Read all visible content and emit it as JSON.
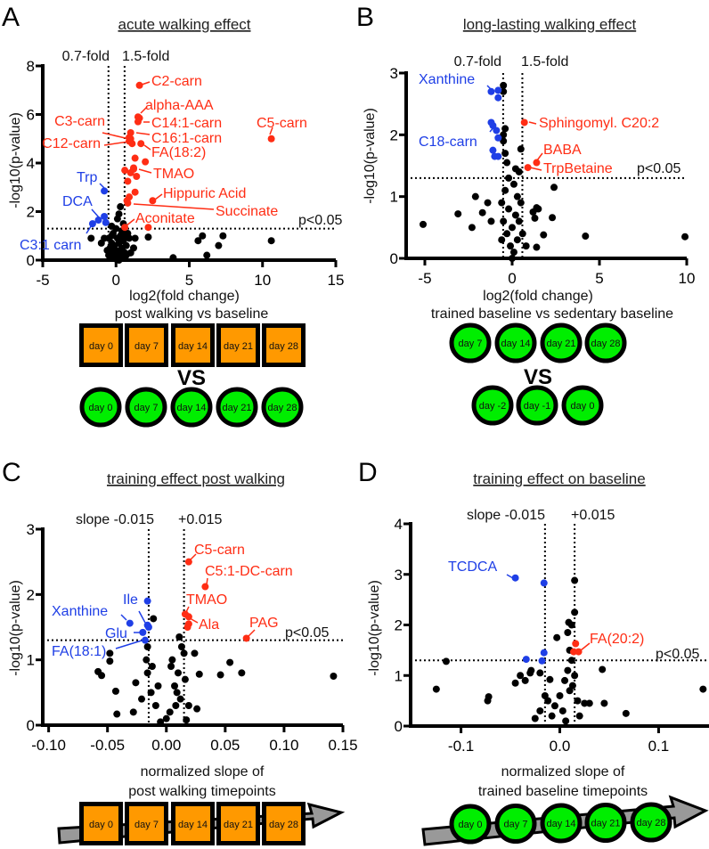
{
  "colors": {
    "up": "#ff2d14",
    "down": "#1f3fe6",
    "ns": "#000000",
    "orange": "#ff9900",
    "green": "#00ee00",
    "arrow": "#999999"
  },
  "panels": {
    "A": {
      "letter": "A",
      "title": "acute walking effect",
      "fold_low": "0.7-fold",
      "fold_high": "1.5-fold",
      "pval": "p<0.05",
      "xlabel": "log2(fold change)",
      "subtitle": "post walking vs baseline",
      "ylabel": "-log10(p-value)",
      "vs": "VS",
      "top_days": [
        "day 0",
        "day 7",
        "day 14",
        "day 21",
        "day 28"
      ],
      "bottom_days": [
        "day 0",
        "day 7",
        "day 14",
        "day 21",
        "day 28"
      ]
    },
    "B": {
      "letter": "B",
      "title": "long-lasting walking effect",
      "fold_low": "0.7-fold",
      "fold_high": "1.5-fold",
      "pval": "p<0.05",
      "xlabel": "log2(fold change)",
      "subtitle": "trained baseline vs sedentary baseline",
      "ylabel": "-log10(p-value)",
      "vs": "VS",
      "top_days": [
        "day 7",
        "day 14",
        "day 21",
        "day 28"
      ],
      "bottom_days": [
        "day -2",
        "day -1",
        "day 0"
      ]
    },
    "C": {
      "letter": "C",
      "title": "training effect post walking",
      "slope_low": "slope -0.015",
      "slope_high": "+0.015",
      "pval": "p<0.05",
      "xlabel1": "normalized slope of",
      "xlabel2": "post walking timepoints",
      "ylabel": "-log10(p-value)",
      "days": [
        "day 0",
        "day 7",
        "day 14",
        "day 21",
        "day 28"
      ]
    },
    "D": {
      "letter": "D",
      "title": "training effect on baseline",
      "slope_low": "slope -0.015",
      "slope_high": "+0.015",
      "pval": "p<0.05",
      "xlabel1": "normalized slope of",
      "xlabel2": "trained baseline timepoints",
      "ylabel": "-log10(p-value)",
      "days": [
        "day 0",
        "day 7",
        "day 14",
        "day 21",
        "day 28"
      ]
    }
  },
  "chart_data": [
    {
      "id": "A",
      "type": "scatter",
      "title": "acute walking effect",
      "xlabel": "log2(fold change)",
      "ylabel": "-log10(p-value)",
      "xlim": [
        -5,
        15
      ],
      "ylim": [
        0,
        8
      ],
      "xticks": [
        -5,
        0,
        5,
        10,
        15
      ],
      "yticks": [
        0,
        2,
        4,
        6,
        8
      ],
      "thresholds": {
        "x": [
          -0.515,
          0.585
        ],
        "y": 1.3
      },
      "labeled": [
        {
          "label": "C2-carn",
          "x": 1.6,
          "y": 7.2,
          "group": "up"
        },
        {
          "label": "alpha-AAA",
          "x": 1.6,
          "y": 5.85,
          "group": "up"
        },
        {
          "label": "C14:1-carn",
          "x": 1.5,
          "y": 5.7,
          "group": "up"
        },
        {
          "label": "C16:1-carn",
          "x": 1.0,
          "y": 5.25,
          "group": "up"
        },
        {
          "label": "C3-carn",
          "x": 1.0,
          "y": 5.0,
          "group": "up"
        },
        {
          "label": "C12-carn",
          "x": 0.9,
          "y": 4.9,
          "group": "up"
        },
        {
          "label": "FA(18:2)",
          "x": 1.7,
          "y": 4.8,
          "group": "up"
        },
        {
          "label": "TMAO",
          "x": 1.2,
          "y": 3.8,
          "group": "up"
        },
        {
          "label": "Hippuric Acid",
          "x": 2.5,
          "y": 2.45,
          "group": "up"
        },
        {
          "label": "Succinate",
          "x": 0.8,
          "y": 2.35,
          "group": "up"
        },
        {
          "label": "Aconitate",
          "x": 0.6,
          "y": 1.35,
          "group": "up"
        },
        {
          "label": "C5-carn",
          "x": 10.6,
          "y": 5.0,
          "group": "up"
        },
        {
          "label": "Trp",
          "x": -0.8,
          "y": 2.85,
          "group": "down"
        },
        {
          "label": "DCA",
          "x": -1.2,
          "y": 1.65,
          "group": "down"
        },
        {
          "label": "C3:1 carn",
          "x": -1.6,
          "y": 1.5,
          "group": "down"
        }
      ],
      "up": [
        [
          1.3,
          4.2
        ],
        [
          2.0,
          4.05
        ],
        [
          0.6,
          3.7
        ],
        [
          1.0,
          3.6
        ],
        [
          1.4,
          3.45
        ],
        [
          1.2,
          3.75
        ],
        [
          0.8,
          3.25
        ],
        [
          0.9,
          2.6
        ],
        [
          1.3,
          2.8
        ],
        [
          0.75,
          2.45
        ],
        [
          2.2,
          1.35
        ],
        [
          1.1,
          4.8
        ],
        [
          0.9,
          5.05
        ],
        [
          1.5,
          5.9
        ]
      ],
      "down": [
        [
          -0.8,
          1.8
        ],
        [
          -0.7,
          1.55
        ]
      ],
      "ns": [
        [
          0.3,
          2.2
        ],
        [
          0.2,
          1.9
        ],
        [
          0.1,
          1.7
        ],
        [
          -0.3,
          1.4
        ],
        [
          0.0,
          1.3
        ],
        [
          0.4,
          1.2
        ],
        [
          -0.2,
          1.1
        ],
        [
          0.3,
          1.0
        ],
        [
          0.6,
          1.0
        ],
        [
          -0.5,
          0.9
        ],
        [
          0.1,
          0.9
        ],
        [
          0.5,
          0.8
        ],
        [
          -0.3,
          0.7
        ],
        [
          0.2,
          0.7
        ],
        [
          0.7,
          0.6
        ],
        [
          -0.1,
          0.6
        ],
        [
          -0.4,
          0.5
        ],
        [
          0.4,
          0.5
        ],
        [
          0.0,
          0.4
        ],
        [
          -0.2,
          0.3
        ],
        [
          0.3,
          0.3
        ],
        [
          0.6,
          0.3
        ],
        [
          -0.5,
          0.2
        ],
        [
          0.1,
          0.2
        ],
        [
          0.4,
          0.1
        ],
        [
          -0.2,
          0.1
        ],
        [
          0.0,
          0.05
        ],
        [
          0.2,
          0.0
        ],
        [
          -1.0,
          0.7
        ],
        [
          -1.7,
          0.9
        ],
        [
          -0.8,
          0.9
        ],
        [
          0.9,
          0.9
        ],
        [
          1.3,
          0.9
        ],
        [
          2.2,
          0.95
        ],
        [
          1.2,
          0.5
        ],
        [
          1.0,
          0.3
        ],
        [
          0.7,
          0.2
        ],
        [
          3.9,
          0.1
        ],
        [
          5.6,
          0.8
        ],
        [
          5.9,
          1.0
        ],
        [
          6.2,
          0.2
        ],
        [
          7.0,
          0.6
        ],
        [
          7.3,
          1.0
        ],
        [
          10.6,
          0.8
        ],
        [
          -0.6,
          0.4
        ],
        [
          0.8,
          1.1
        ],
        [
          -0.3,
          1.0
        ],
        [
          0.5,
          1.5
        ]
      ]
    },
    {
      "id": "B",
      "type": "scatter",
      "title": "long-lasting walking effect",
      "xlabel": "log2(fold change)",
      "ylabel": "-log10(p-value)",
      "xlim": [
        -6.07,
        10
      ],
      "ylim": [
        0,
        3
      ],
      "xticks": [
        -5,
        0,
        5,
        10
      ],
      "yticks": [
        0,
        1,
        2,
        3
      ],
      "thresholds": {
        "x": [
          -0.515,
          0.585
        ],
        "y": 1.3
      },
      "labeled": [
        {
          "label": "Xanthine",
          "x": -1.2,
          "y": 2.7,
          "group": "down"
        },
        {
          "label": "C18-carn",
          "x": -1.2,
          "y": 2.2,
          "group": "down"
        },
        {
          "label": "Sphingomyl. C20:2",
          "x": 0.7,
          "y": 2.2,
          "group": "up"
        },
        {
          "label": "BABA",
          "x": 1.4,
          "y": 1.55,
          "group": "up"
        },
        {
          "label": "TrpBetaine",
          "x": 0.9,
          "y": 1.47,
          "group": "up"
        }
      ],
      "up": [],
      "down": [
        [
          -0.8,
          2.72
        ],
        [
          -0.8,
          2.6
        ],
        [
          -1.1,
          2.15
        ],
        [
          -0.9,
          2.07
        ],
        [
          -0.8,
          1.95
        ],
        [
          -1.1,
          1.75
        ],
        [
          -1.0,
          1.65
        ],
        [
          -0.8,
          1.65
        ]
      ],
      "ns": [
        [
          -0.5,
          2.8
        ],
        [
          -0.5,
          2.7
        ],
        [
          -0.4,
          2.1
        ],
        [
          -0.5,
          2.0
        ],
        [
          -0.5,
          1.9
        ],
        [
          -0.4,
          1.7
        ],
        [
          0.5,
          1.77
        ],
        [
          -0.3,
          1.55
        ],
        [
          0.2,
          1.45
        ],
        [
          0.4,
          1.4
        ],
        [
          -0.2,
          1.3
        ],
        [
          0.1,
          1.2
        ],
        [
          -0.4,
          1.1
        ],
        [
          0.3,
          1.0
        ],
        [
          -0.6,
          0.9
        ],
        [
          0.5,
          0.9
        ],
        [
          -0.2,
          0.8
        ],
        [
          0.2,
          0.7
        ],
        [
          -0.5,
          0.6
        ],
        [
          0.4,
          0.6
        ],
        [
          0.0,
          0.5
        ],
        [
          -0.3,
          0.4
        ],
        [
          0.3,
          0.3
        ],
        [
          -0.1,
          0.2
        ],
        [
          0.1,
          0.1
        ],
        [
          0.0,
          0.0
        ],
        [
          -0.6,
          0.3
        ],
        [
          0.6,
          0.4
        ],
        [
          2.4,
          1.15
        ],
        [
          -2.1,
          1.0
        ],
        [
          -1.4,
          0.9
        ],
        [
          -3.1,
          0.72
        ],
        [
          -1.7,
          0.74
        ],
        [
          -2.3,
          0.5
        ],
        [
          -5.1,
          0.55
        ],
        [
          1.4,
          0.82
        ],
        [
          1.5,
          0.8
        ],
        [
          1.2,
          0.75
        ],
        [
          1.3,
          0.65
        ],
        [
          2.3,
          0.66
        ],
        [
          1.8,
          0.38
        ],
        [
          1.4,
          0.18
        ],
        [
          4.2,
          0.36
        ],
        [
          9.9,
          0.35
        ],
        [
          -1.2,
          0.6
        ],
        [
          0.8,
          0.2
        ]
      ]
    },
    {
      "id": "C",
      "type": "scatter",
      "title": "training effect post walking",
      "xlabel": "normalized slope of post walking timepoints",
      "ylabel": "-log10(p-value)",
      "xlim": [
        -0.105,
        0.15
      ],
      "ylim": [
        0,
        3
      ],
      "xticks": [
        -0.1,
        -0.05,
        0.0,
        0.05,
        0.1,
        0.15
      ],
      "xtick_labels": [
        "-0.10",
        "-0.05",
        "0.00",
        "0.05",
        "0.10",
        "0.15"
      ],
      "yticks": [
        0,
        1,
        2,
        3
      ],
      "thresholds": {
        "x": [
          -0.015,
          0.015
        ],
        "y": 1.3
      },
      "labeled": [
        {
          "label": "C5-carn",
          "x": 0.019,
          "y": 2.5,
          "group": "up"
        },
        {
          "label": "C5:1-DC-carn",
          "x": 0.033,
          "y": 2.12,
          "group": "up"
        },
        {
          "label": "TMAO",
          "x": 0.016,
          "y": 1.7,
          "group": "up"
        },
        {
          "label": "Ala",
          "x": 0.019,
          "y": 1.66,
          "group": "up"
        },
        {
          "label": "PAG",
          "x": 0.068,
          "y": 1.33,
          "group": "up"
        },
        {
          "label": "Ile",
          "x": -0.016,
          "y": 1.9,
          "group": "down"
        },
        {
          "label": "Xanthine",
          "x": -0.031,
          "y": 1.56,
          "group": "down"
        },
        {
          "label": "Glu",
          "x": -0.02,
          "y": 1.42,
          "group": "down"
        },
        {
          "label": "FA(18:1)",
          "x": -0.018,
          "y": 1.3,
          "group": "down"
        }
      ],
      "up": [
        [
          0.018,
          1.5
        ],
        [
          0.019,
          1.55
        ]
      ],
      "down": [
        [
          -0.016,
          1.53
        ],
        [
          -0.015,
          1.5
        ]
      ],
      "ns": [
        [
          -0.011,
          1.63
        ],
        [
          -0.048,
          1.1
        ],
        [
          -0.048,
          0.98
        ],
        [
          -0.058,
          0.82
        ],
        [
          -0.055,
          0.76
        ],
        [
          -0.043,
          0.52
        ],
        [
          -0.042,
          0.17
        ],
        [
          0.024,
          1.1
        ],
        [
          0.028,
          0.78
        ],
        [
          0.046,
          0.77
        ],
        [
          0.054,
          0.96
        ],
        [
          0.064,
          0.8
        ],
        [
          0.142,
          0.75
        ],
        [
          0.026,
          0.25
        ],
        [
          0.015,
          1.1
        ],
        [
          0.011,
          1.35
        ],
        [
          0.005,
          1.0
        ],
        [
          -0.016,
          1.2
        ],
        [
          -0.017,
          1.0
        ],
        [
          -0.016,
          0.8
        ],
        [
          -0.013,
          0.5
        ],
        [
          -0.026,
          0.65
        ],
        [
          -0.021,
          0.4
        ],
        [
          -0.028,
          0.2
        ],
        [
          -0.009,
          0.3
        ],
        [
          0.0,
          0.1
        ],
        [
          -0.005,
          0.05
        ],
        [
          0.003,
          0.2
        ],
        [
          0.007,
          0.6
        ],
        [
          0.01,
          0.8
        ],
        [
          0.012,
          0.4
        ],
        [
          0.008,
          0.3
        ],
        [
          0.016,
          0.7
        ],
        [
          0.019,
          0.3
        ],
        [
          0.017,
          0.08
        ],
        [
          0.004,
          0.9
        ],
        [
          0.009,
          0.5
        ],
        [
          -0.012,
          0.9
        ],
        [
          -0.007,
          0.6
        ],
        [
          0.013,
          1.2
        ]
      ]
    },
    {
      "id": "D",
      "type": "scatter",
      "title": "training effect on baseline",
      "xlabel": "normalized slope of trained baseline timepoints",
      "ylabel": "-log10(p-value)",
      "xlim": [
        -0.151,
        0.151
      ],
      "ylim": [
        0,
        4
      ],
      "xticks": [
        -0.1,
        0.0,
        0.1
      ],
      "xtick_labels": [
        "-0.1",
        "0.0",
        "0.1"
      ],
      "yticks": [
        0,
        1,
        2,
        3,
        4
      ],
      "thresholds": {
        "x": [
          -0.015,
          0.015
        ],
        "y": 1.3
      },
      "labeled": [
        {
          "label": "TCDCA",
          "x": -0.045,
          "y": 2.93,
          "group": "down"
        },
        {
          "label": "FA(20:2)",
          "x": 0.019,
          "y": 1.47,
          "group": "up"
        }
      ],
      "up": [
        [
          0.016,
          1.63
        ],
        [
          0.014,
          1.47
        ]
      ],
      "down": [
        [
          -0.016,
          2.83
        ],
        [
          -0.016,
          1.45
        ],
        [
          -0.034,
          1.32
        ],
        [
          -0.018,
          1.29
        ]
      ],
      "ns": [
        [
          0.015,
          2.88
        ],
        [
          0.015,
          2.25
        ],
        [
          0.009,
          2.05
        ],
        [
          0.012,
          2.0
        ],
        [
          0.008,
          1.85
        ],
        [
          -0.003,
          1.75
        ],
        [
          -0.115,
          1.28
        ],
        [
          -0.03,
          1.05
        ],
        [
          -0.029,
          1.1
        ],
        [
          0.043,
          1.12
        ],
        [
          0.145,
          0.73
        ],
        [
          -0.125,
          0.73
        ],
        [
          -0.072,
          0.58
        ],
        [
          -0.073,
          0.5
        ],
        [
          -0.01,
          0.92
        ],
        [
          0.045,
          0.45
        ],
        [
          0.067,
          0.25
        ],
        [
          0.03,
          0.45
        ],
        [
          0.025,
          0.45
        ],
        [
          -0.02,
          1.05
        ],
        [
          -0.045,
          0.85
        ],
        [
          -0.04,
          1.0
        ],
        [
          -0.035,
          0.9
        ],
        [
          0.01,
          1.5
        ],
        [
          0.012,
          1.3
        ],
        [
          0.008,
          1.1
        ],
        [
          0.005,
          0.9
        ],
        [
          0.013,
          0.8
        ],
        [
          0.0,
          0.6
        ],
        [
          -0.005,
          0.4
        ],
        [
          0.003,
          0.3
        ],
        [
          0.006,
          0.1
        ],
        [
          -0.008,
          0.2
        ],
        [
          0.018,
          0.5
        ],
        [
          0.02,
          0.2
        ],
        [
          -0.015,
          0.6
        ],
        [
          -0.02,
          0.3
        ],
        [
          0.01,
          0.7
        ],
        [
          -0.025,
          0.15
        ],
        [
          0.015,
          1.0
        ],
        [
          -0.012,
          0.5
        ]
      ]
    }
  ]
}
